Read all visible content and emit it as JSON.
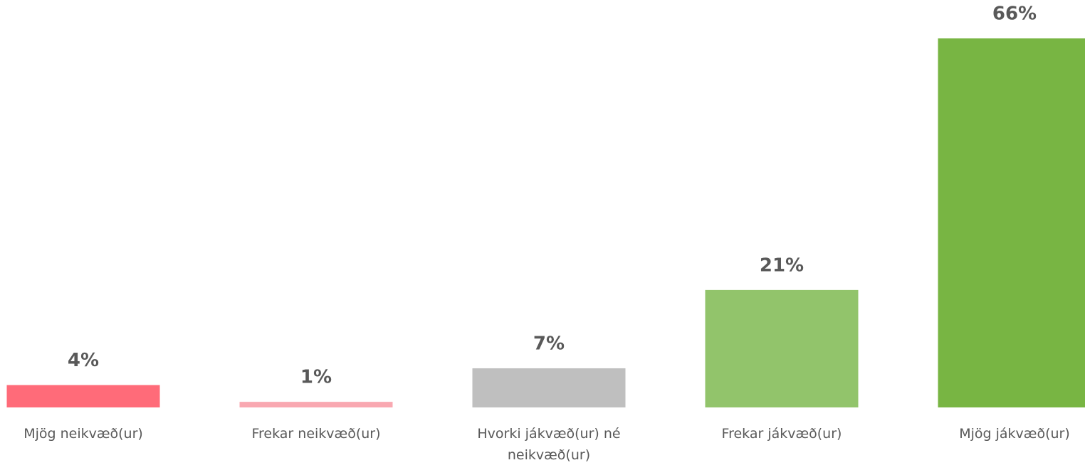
{
  "chart_data": {
    "type": "bar",
    "categories": [
      "Mjög neikvæð(ur)",
      "Frekar neikvæð(ur)",
      "Hvorki jákvæð(ur) né neikvæð(ur)",
      "Frekar jákvæð(ur)",
      "Mjög jákvæð(ur)"
    ],
    "values": [
      4,
      1,
      7,
      21,
      66
    ],
    "value_labels": [
      "4%",
      "1%",
      "7%",
      "21%",
      "66%"
    ],
    "colors": [
      "#ff6b79",
      "#f9a8b1",
      "#bfbfbf",
      "#92c46b",
      "#78b543"
    ]
  }
}
